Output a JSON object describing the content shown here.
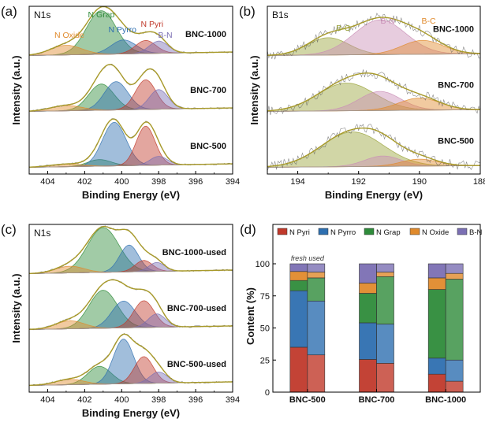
{
  "chart_data": [
    {
      "id": "a",
      "type": "xps-spectrum",
      "panel_letter": "(a)",
      "core_level": "N1s",
      "xlabel": "Binding Energy (eV)",
      "ylabel": "Intensity (a.u.)",
      "xlim": [
        405,
        394
      ],
      "xticks": [
        404,
        402,
        400,
        398,
        396,
        394
      ],
      "components": [
        {
          "name": "N Pyri",
          "center": 398.7,
          "color": "#c0392b"
        },
        {
          "name": "N Pyrro",
          "center": 400.3,
          "color": "#2e6fb0"
        },
        {
          "name": "N Grap",
          "center": 401.1,
          "color": "#2e8b3a"
        },
        {
          "name": "N Oxide",
          "center": 403.0,
          "color": "#e08a2c"
        },
        {
          "name": "B-N",
          "center": 397.9,
          "color": "#7b6fb3"
        }
      ],
      "series": [
        {
          "name": "BNC-1000",
          "peaks": [
            {
              "component": "N Grap",
              "center": 401.1,
              "height": 1.0,
              "fwhm": 1.9
            },
            {
              "component": "N Pyrro",
              "center": 399.9,
              "height": 0.32,
              "fwhm": 1.6
            },
            {
              "component": "N Pyri",
              "center": 398.7,
              "height": 0.3,
              "fwhm": 1.3
            },
            {
              "component": "B-N",
              "center": 398.0,
              "height": 0.28,
              "fwhm": 1.2
            },
            {
              "component": "N Oxide",
              "center": 403.0,
              "height": 0.22,
              "fwhm": 2.0
            }
          ]
        },
        {
          "name": "BNC-700",
          "peaks": [
            {
              "component": "N Grap",
              "center": 401.1,
              "height": 0.6,
              "fwhm": 1.6
            },
            {
              "component": "N Pyrro",
              "center": 400.3,
              "height": 0.65,
              "fwhm": 1.5
            },
            {
              "component": "N Pyri",
              "center": 398.7,
              "height": 0.68,
              "fwhm": 1.3
            },
            {
              "component": "B-N",
              "center": 398.0,
              "height": 0.45,
              "fwhm": 1.2
            },
            {
              "component": "N Oxide",
              "center": 403.0,
              "height": 0.12,
              "fwhm": 2.0
            }
          ]
        },
        {
          "name": "BNC-500",
          "peaks": [
            {
              "component": "N Grap",
              "center": 401.2,
              "height": 0.15,
              "fwhm": 1.5
            },
            {
              "component": "N Pyrro",
              "center": 400.4,
              "height": 1.0,
              "fwhm": 1.5
            },
            {
              "component": "N Pyri",
              "center": 398.7,
              "height": 0.9,
              "fwhm": 1.2
            },
            {
              "component": "B-N",
              "center": 398.0,
              "height": 0.2,
              "fwhm": 1.1
            },
            {
              "component": "N Oxide",
              "center": 403.0,
              "height": 0.06,
              "fwhm": 2.0
            }
          ]
        }
      ]
    },
    {
      "id": "b",
      "type": "xps-spectrum",
      "panel_letter": "(b)",
      "core_level": "B1s",
      "xlabel": "Binding Energy (eV)",
      "ylabel": "Intensity (a.u.)",
      "xlim": [
        195,
        188
      ],
      "xticks": [
        194,
        192,
        190,
        188
      ],
      "components": [
        {
          "name": "B-O",
          "center": 192.5,
          "color": "#9aa33a"
        },
        {
          "name": "B-N",
          "center": 191.2,
          "color": "#c98fb6"
        },
        {
          "name": "B-C",
          "center": 189.8,
          "color": "#e08a2c"
        }
      ],
      "series": [
        {
          "name": "BNC-1000",
          "peaks": [
            {
              "component": "B-O",
              "center": 193.0,
              "height": 0.5,
              "fwhm": 1.6
            },
            {
              "component": "B-N",
              "center": 191.3,
              "height": 1.0,
              "fwhm": 2.0
            },
            {
              "component": "B-C",
              "center": 189.9,
              "height": 0.4,
              "fwhm": 1.6
            }
          ]
        },
        {
          "name": "BNC-700",
          "peaks": [
            {
              "component": "B-O",
              "center": 192.4,
              "height": 0.8,
              "fwhm": 2.2
            },
            {
              "component": "B-N",
              "center": 191.3,
              "height": 0.55,
              "fwhm": 1.6
            },
            {
              "component": "B-C",
              "center": 190.0,
              "height": 0.35,
              "fwhm": 1.6
            }
          ]
        },
        {
          "name": "BNC-500",
          "peaks": [
            {
              "component": "B-O",
              "center": 192.2,
              "height": 1.0,
              "fwhm": 2.4
            },
            {
              "component": "B-N",
              "center": 191.2,
              "height": 0.3,
              "fwhm": 1.4
            },
            {
              "component": "B-C",
              "center": 190.0,
              "height": 0.2,
              "fwhm": 1.4
            }
          ]
        }
      ]
    },
    {
      "id": "c",
      "type": "xps-spectrum",
      "panel_letter": "(c)",
      "core_level": "N1s",
      "xlabel": "Binding Energy (eV)",
      "ylabel": "Intensity (a.u.)",
      "xlim": [
        405,
        394
      ],
      "xticks": [
        404,
        402,
        400,
        398,
        396,
        394
      ],
      "series": [
        {
          "name": "BNC-1000-used",
          "peaks": [
            {
              "component": "N Grap",
              "center": 401.0,
              "height": 1.0,
              "fwhm": 2.0
            },
            {
              "component": "N Pyrro",
              "center": 399.6,
              "height": 0.6,
              "fwhm": 1.2
            },
            {
              "component": "N Pyri",
              "center": 398.8,
              "height": 0.25,
              "fwhm": 1.1
            },
            {
              "component": "B-N",
              "center": 398.1,
              "height": 0.2,
              "fwhm": 1.0
            },
            {
              "component": "N Oxide",
              "center": 402.8,
              "height": 0.15,
              "fwhm": 1.8
            }
          ]
        },
        {
          "name": "BNC-700-used",
          "peaks": [
            {
              "component": "N Grap",
              "center": 401.0,
              "height": 0.85,
              "fwhm": 1.8
            },
            {
              "component": "N Pyrro",
              "center": 399.9,
              "height": 0.6,
              "fwhm": 1.5
            },
            {
              "component": "N Pyri",
              "center": 398.8,
              "height": 0.6,
              "fwhm": 1.3
            },
            {
              "component": "B-N",
              "center": 398.1,
              "height": 0.3,
              "fwhm": 1.1
            },
            {
              "component": "N Oxide",
              "center": 402.8,
              "height": 0.18,
              "fwhm": 1.8
            }
          ]
        },
        {
          "name": "BNC-500-used",
          "peaks": [
            {
              "component": "N Grap",
              "center": 401.2,
              "height": 0.4,
              "fwhm": 1.5
            },
            {
              "component": "N Pyrro",
              "center": 399.9,
              "height": 1.0,
              "fwhm": 1.3
            },
            {
              "component": "N Pyri",
              "center": 398.8,
              "height": 0.6,
              "fwhm": 1.2
            },
            {
              "component": "B-N",
              "center": 398.0,
              "height": 0.25,
              "fwhm": 1.1
            },
            {
              "component": "N Oxide",
              "center": 402.8,
              "height": 0.12,
              "fwhm": 1.8
            }
          ]
        }
      ]
    },
    {
      "id": "d",
      "type": "bar",
      "stacked": true,
      "panel_letter": "(d)",
      "ylabel": "Content (%)",
      "ylim": [
        0,
        100
      ],
      "yticks": [
        0,
        25,
        50,
        75,
        100
      ],
      "annotation": "fresh used",
      "categories": [
        "BNC-500",
        "BNC-700",
        "BNC-1000"
      ],
      "bar_pairs": [
        "fresh",
        "used"
      ],
      "series": [
        {
          "name": "N Pyri",
          "color": "#c0392b",
          "fresh": [
            35,
            25.5,
            14
          ],
          "used": [
            29,
            22.5,
            8.5
          ]
        },
        {
          "name": "N Pyrro",
          "color": "#2e6fb0",
          "fresh": [
            44,
            28.5,
            12.5
          ],
          "used": [
            42,
            30.5,
            16.5
          ]
        },
        {
          "name": "N Grap",
          "color": "#2e8b3a",
          "fresh": [
            8,
            23,
            53.5
          ],
          "used": [
            18,
            37,
            63
          ]
        },
        {
          "name": "N Oxide",
          "color": "#e08a2c",
          "fresh": [
            7,
            8,
            9
          ],
          "used": [
            4.5,
            3.5,
            4.5
          ]
        },
        {
          "name": "B-N",
          "color": "#7b6fb3",
          "fresh": [
            6,
            15,
            11
          ],
          "used": [
            6.5,
            6.5,
            7.5
          ]
        }
      ],
      "legend": "top"
    }
  ]
}
